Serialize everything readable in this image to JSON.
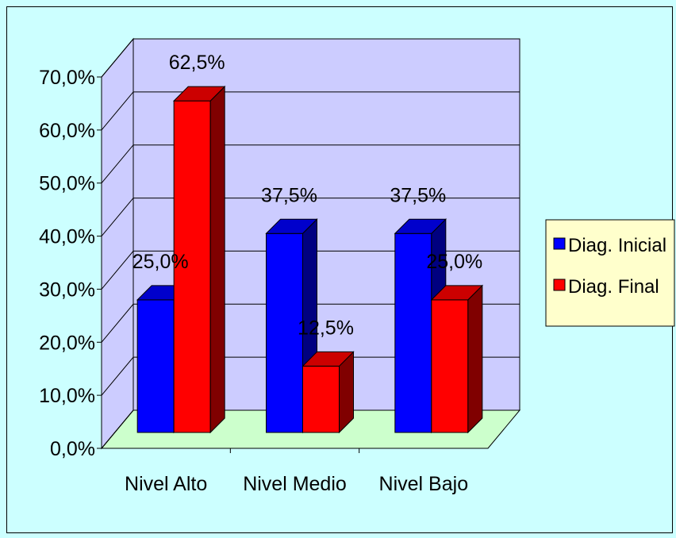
{
  "chart_data": {
    "type": "bar",
    "categories": [
      "Nivel Alto",
      "Nivel Medio",
      "Nivel Bajo"
    ],
    "series": [
      {
        "name": "Diag. Inicial",
        "values": [
          25.0,
          37.5,
          37.5
        ],
        "color": "#0000ff"
      },
      {
        "name": "Diag. Final",
        "values": [
          62.5,
          12.5,
          25.0
        ],
        "color": "#ff0000"
      }
    ],
    "data_labels": [
      [
        "25,0%",
        "37,5%",
        "37,5%"
      ],
      [
        "62,5%",
        "12,5%",
        "25,0%"
      ]
    ],
    "y_ticks": [
      "0,0%",
      "10,0%",
      "20,0%",
      "30,0%",
      "40,0%",
      "50,0%",
      "60,0%",
      "70,0%"
    ],
    "ylim": [
      0,
      70
    ],
    "title": "",
    "xlabel": "",
    "ylabel": "",
    "grid": true,
    "legend_position": "right",
    "style": "3d-clustered-column",
    "colors": {
      "background": "#ccffff",
      "back_wall": "#ccccff",
      "floor": "#ccffcc",
      "legend_bg": "#ffffcc"
    }
  }
}
